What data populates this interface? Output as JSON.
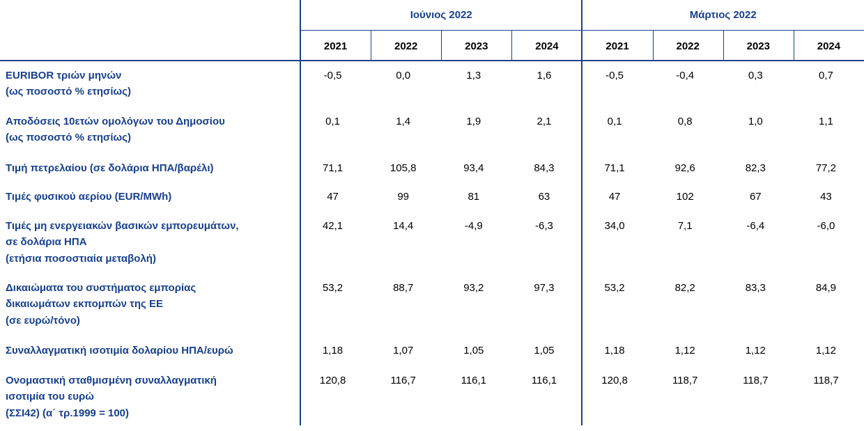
{
  "header": {
    "groups": [
      {
        "title": "Ιούνιος 2022",
        "years": [
          "2021",
          "2022",
          "2023",
          "2024"
        ]
      },
      {
        "title": "Μάρτιος 2022",
        "years": [
          "2021",
          "2022",
          "2023",
          "2024"
        ]
      }
    ]
  },
  "table": {
    "rows": [
      {
        "label": [
          "EURIBOR τριών μηνών",
          "(ως ποσοστό % ετησίως)"
        ],
        "values": [
          "-0,5",
          "0,0",
          "1,3",
          "1,6",
          "-0,5",
          "-0,4",
          "0,3",
          "0,7"
        ]
      },
      {
        "label": [
          "Αποδόσεις 10ετών ομολόγων του Δημοσίου",
          "(ως ποσοστό % ετησίως)"
        ],
        "values": [
          "0,1",
          "1,4",
          "1,9",
          "2,1",
          "0,1",
          "0,8",
          "1,0",
          "1,1"
        ]
      },
      {
        "label": [
          "Τιμή πετρελαίου (σε δολάρια ΗΠΑ/βαρέλι)"
        ],
        "values": [
          "71,1",
          "105,8",
          "93,4",
          "84,3",
          "71,1",
          "92,6",
          "82,3",
          "77,2"
        ]
      },
      {
        "label": [
          "Τιμές φυσικού αερίου (EUR/MWh)"
        ],
        "values": [
          "47",
          "99",
          "81",
          "63",
          "47",
          "102",
          "67",
          "43"
        ]
      },
      {
        "label": [
          "Τιμές μη ενεργειακών βασικών εμπορευμάτων,",
          "σε δολάρια ΗΠΑ",
          "(ετήσια ποσοστιαία μεταβολή)"
        ],
        "values": [
          "42,1",
          "14,4",
          "-4,9",
          "-6,3",
          "34,0",
          "7,1",
          "-6,4",
          "-6,0"
        ]
      },
      {
        "label": [
          "Δικαιώματα του συστήματος εμπορίας",
          "δικαιωμάτων εκπομπών της ΕΕ",
          "(σε ευρώ/τόνο)"
        ],
        "values": [
          "53,2",
          "88,7",
          "93,2",
          "97,3",
          "53,2",
          "82,2",
          "83,3",
          "84,9"
        ]
      },
      {
        "label": [
          "Συναλλαγματική ισοτιμία δολαρίου ΗΠΑ/ευρώ"
        ],
        "values": [
          "1,18",
          "1,07",
          "1,05",
          "1,05",
          "1,18",
          "1,12",
          "1,12",
          "1,12"
        ]
      },
      {
        "label": [
          "Ονομαστική σταθμισμένη συναλλαγματική",
          "ισοτιμία του ευρώ",
          "(ΣΣΙ42) (α΄ τρ.1999 = 100)"
        ],
        "values": [
          "120,8",
          "116,7",
          "116,1",
          "116,1",
          "120,8",
          "118,7",
          "118,7",
          "118,7"
        ]
      }
    ]
  }
}
